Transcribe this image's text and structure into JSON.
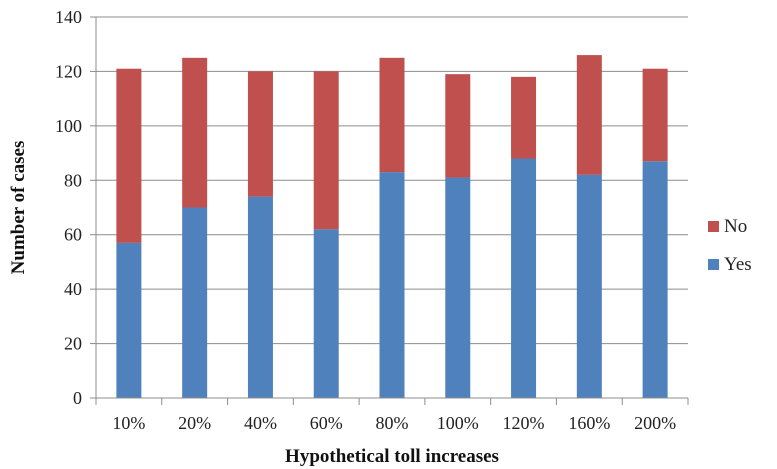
{
  "chart_data": {
    "type": "bar",
    "stacked": true,
    "title": "",
    "xlabel": "Hypothetical toll increases",
    "ylabel": "Number of cases",
    "categories": [
      "10%",
      "20%",
      "40%",
      "60%",
      "80%",
      "100%",
      "120%",
      "160%",
      "200%"
    ],
    "series": [
      {
        "name": "Yes",
        "color": "#4f81bd",
        "values": [
          57,
          70,
          74,
          62,
          83,
          81,
          88,
          82,
          87
        ]
      },
      {
        "name": "No",
        "color": "#c0504d",
        "values": [
          64,
          55,
          46,
          58,
          42,
          38,
          30,
          44,
          34
        ]
      }
    ],
    "ylim": [
      0,
      140
    ],
    "yticks": [
      0,
      20,
      40,
      60,
      80,
      100,
      120,
      140
    ],
    "grid": true,
    "legend_position": "right"
  }
}
